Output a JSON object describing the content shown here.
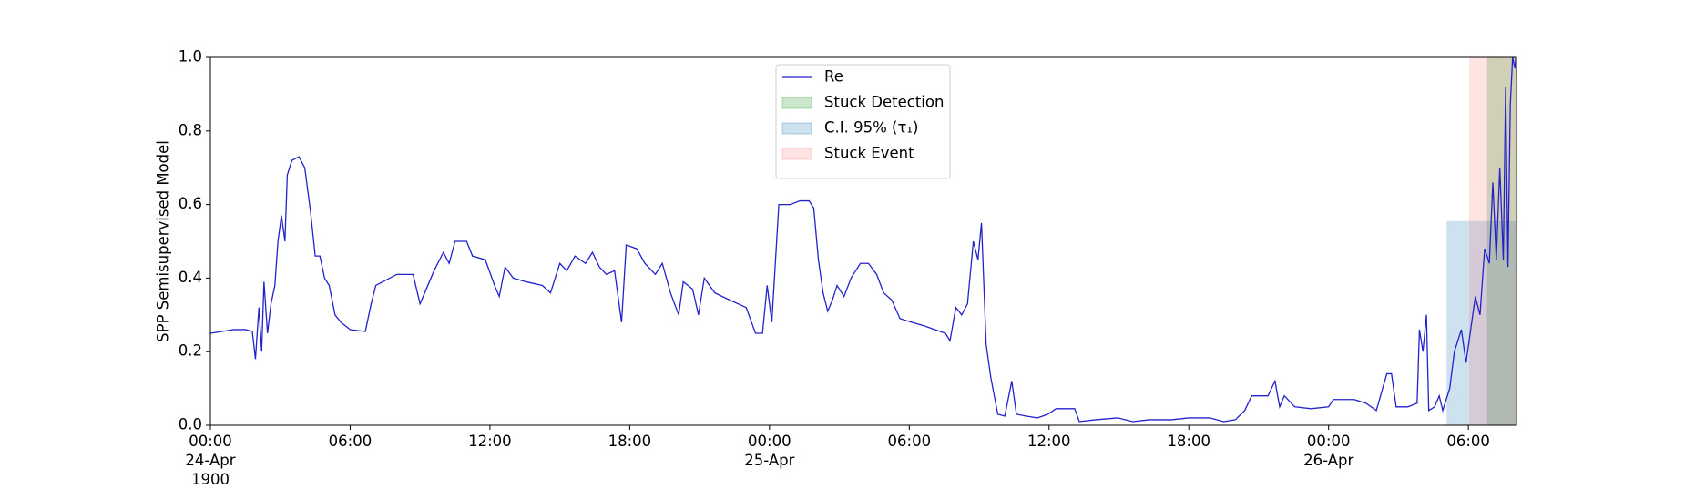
{
  "chart_data": {
    "type": "line",
    "ylabel": "SPP Semisupervised Model",
    "xlim": [
      "1900-04-24 00:00",
      "1900-04-26 08:04"
    ],
    "xticks": [
      {
        "value": "1900-04-24 00:00",
        "label": "00:00\n24-Apr\n1900"
      },
      {
        "value": "1900-04-24 06:00",
        "label": "06:00"
      },
      {
        "value": "1900-04-24 12:00",
        "label": "12:00"
      },
      {
        "value": "1900-04-24 18:00",
        "label": "18:00"
      },
      {
        "value": "1900-04-25 00:00",
        "label": "00:00\n25-Apr"
      },
      {
        "value": "1900-04-25 06:00",
        "label": "06:00"
      },
      {
        "value": "1900-04-25 12:00",
        "label": "12:00"
      },
      {
        "value": "1900-04-25 18:00",
        "label": "18:00"
      },
      {
        "value": "1900-04-26 00:00",
        "label": "00:00\n26-Apr"
      },
      {
        "value": "1900-04-26 06:00",
        "label": "06:00"
      }
    ],
    "ylim": [
      0,
      1
    ],
    "yticks": [
      {
        "value": 0,
        "label": "0.0"
      },
      0.2,
      0.4,
      0.6,
      0.8,
      {
        "value": 1,
        "label": "1.0"
      }
    ],
    "grid": false,
    "legend": "upper center",
    "x": [
      "1900-04-24 00:00",
      "1900-04-24 00:30",
      "1900-04-24 01:00",
      "1900-04-24 01:30",
      "1900-04-24 01:48",
      "1900-04-24 01:56",
      "1900-04-24 02:05",
      "1900-04-24 02:12",
      "1900-04-24 02:18",
      "1900-04-24 02:27",
      "1900-04-24 02:36",
      "1900-04-24 02:46",
      "1900-04-24 02:54",
      "1900-04-24 03:03",
      "1900-04-24 03:12",
      "1900-04-24 03:18",
      "1900-04-24 03:30",
      "1900-04-24 03:48",
      "1900-04-24 04:03",
      "1900-04-24 04:18",
      "1900-04-24 04:30",
      "1900-04-24 04:42",
      "1900-04-24 04:54",
      "1900-04-24 05:06",
      "1900-04-24 05:21",
      "1900-04-24 05:36",
      "1900-04-24 06:00",
      "1900-04-24 06:39",
      "1900-04-24 06:54",
      "1900-04-24 07:06",
      "1900-04-24 07:24",
      "1900-04-24 08:00",
      "1900-04-24 08:42",
      "1900-04-24 09:00",
      "1900-04-24 09:12",
      "1900-04-24 09:36",
      "1900-04-24 10:00",
      "1900-04-24 10:15",
      "1900-04-24 10:30",
      "1900-04-24 11:00",
      "1900-04-24 11:15",
      "1900-04-24 11:48",
      "1900-04-24 12:12",
      "1900-04-24 12:24",
      "1900-04-24 12:39",
      "1900-04-24 13:00",
      "1900-04-24 13:33",
      "1900-04-24 14:15",
      "1900-04-24 14:36",
      "1900-04-24 15:00",
      "1900-04-24 15:18",
      "1900-04-24 15:39",
      "1900-04-24 16:06",
      "1900-04-24 16:24",
      "1900-04-24 16:42",
      "1900-04-24 17:00",
      "1900-04-24 17:21",
      "1900-04-24 17:39",
      "1900-04-24 17:51",
      "1900-04-24 18:18",
      "1900-04-24 18:39",
      "1900-04-24 19:06",
      "1900-04-24 19:24",
      "1900-04-24 19:45",
      "1900-04-24 20:06",
      "1900-04-24 20:18",
      "1900-04-24 20:42",
      "1900-04-24 20:57",
      "1900-04-24 21:12",
      "1900-04-24 21:39",
      "1900-04-24 22:18",
      "1900-04-24 23:00",
      "1900-04-24 23:24",
      "1900-04-24 23:42",
      "1900-04-24 23:54",
      "1900-04-25 00:06",
      "1900-04-25 00:24",
      "1900-04-25 00:54",
      "1900-04-25 01:18",
      "1900-04-25 01:42",
      "1900-04-25 01:54",
      "1900-04-25 02:06",
      "1900-04-25 02:18",
      "1900-04-25 02:30",
      "1900-04-25 02:42",
      "1900-04-25 02:54",
      "1900-04-25 03:12",
      "1900-04-25 03:30",
      "1900-04-25 03:54",
      "1900-04-25 04:15",
      "1900-04-25 04:36",
      "1900-04-25 04:54",
      "1900-04-25 05:15",
      "1900-04-25 05:36",
      "1900-04-25 06:06",
      "1900-04-25 06:39",
      "1900-04-25 07:06",
      "1900-04-25 07:33",
      "1900-04-25 07:45",
      "1900-04-25 08:00",
      "1900-04-25 08:15",
      "1900-04-25 08:30",
      "1900-04-25 08:45",
      "1900-04-25 08:57",
      "1900-04-25 09:06",
      "1900-04-25 09:18",
      "1900-04-25 09:30",
      "1900-04-25 09:48",
      "1900-04-25 10:06",
      "1900-04-25 10:24",
      "1900-04-25 10:36",
      "1900-04-25 11:00",
      "1900-04-25 11:30",
      "1900-04-25 11:57",
      "1900-04-25 12:18",
      "1900-04-25 13:06",
      "1900-04-25 13:18",
      "1900-04-25 14:00",
      "1900-04-25 14:57",
      "1900-04-25 15:36",
      "1900-04-25 16:18",
      "1900-04-25 17:15",
      "1900-04-25 18:00",
      "1900-04-25 18:54",
      "1900-04-25 19:30",
      "1900-04-25 20:00",
      "1900-04-25 20:24",
      "1900-04-25 20:42",
      "1900-04-25 21:24",
      "1900-04-25 21:42",
      "1900-04-25 21:54",
      "1900-04-25 22:06",
      "1900-04-25 22:33",
      "1900-04-25 23:15",
      "1900-04-26 00:00",
      "1900-04-26 00:12",
      "1900-04-26 01:06",
      "1900-04-26 01:36",
      "1900-04-26 02:03",
      "1900-04-26 02:30",
      "1900-04-26 02:42",
      "1900-04-26 02:54",
      "1900-04-26 03:24",
      "1900-04-26 03:48",
      "1900-04-26 03:54",
      "1900-04-26 04:03",
      "1900-04-26 04:12",
      "1900-04-26 04:18",
      "1900-04-26 04:33",
      "1900-04-26 04:45",
      "1900-04-26 04:54",
      "1900-04-26 05:12",
      "1900-04-26 05:24",
      "1900-04-26 05:42",
      "1900-04-26 05:54",
      "1900-04-26 06:06",
      "1900-04-26 06:18",
      "1900-04-26 06:30",
      "1900-04-26 06:42",
      "1900-04-26 06:54",
      "1900-04-26 07:03",
      "1900-04-26 07:12",
      "1900-04-26 07:21",
      "1900-04-26 07:30",
      "1900-04-26 07:36",
      "1900-04-26 07:42",
      "1900-04-26 07:48",
      "1900-04-26 07:54",
      "1900-04-26 08:00",
      "1900-04-26 08:02",
      "1900-04-26 08:04"
    ],
    "series": [
      {
        "name": "Re",
        "color": "#2222cc",
        "values": [
          0.25,
          0.255,
          0.26,
          0.26,
          0.255,
          0.18,
          0.32,
          0.2,
          0.39,
          0.25,
          0.33,
          0.38,
          0.5,
          0.57,
          0.5,
          0.68,
          0.72,
          0.73,
          0.7,
          0.58,
          0.46,
          0.46,
          0.4,
          0.38,
          0.3,
          0.28,
          0.26,
          0.255,
          0.33,
          0.38,
          0.39,
          0.41,
          0.41,
          0.33,
          0.36,
          0.42,
          0.47,
          0.44,
          0.5,
          0.5,
          0.46,
          0.45,
          0.38,
          0.35,
          0.43,
          0.4,
          0.39,
          0.38,
          0.36,
          0.44,
          0.42,
          0.46,
          0.44,
          0.47,
          0.43,
          0.41,
          0.42,
          0.28,
          0.49,
          0.48,
          0.44,
          0.41,
          0.44,
          0.36,
          0.3,
          0.39,
          0.37,
          0.3,
          0.4,
          0.36,
          0.34,
          0.32,
          0.25,
          0.25,
          0.38,
          0.28,
          0.6,
          0.6,
          0.61,
          0.61,
          0.59,
          0.45,
          0.36,
          0.31,
          0.34,
          0.38,
          0.35,
          0.4,
          0.44,
          0.44,
          0.41,
          0.36,
          0.34,
          0.29,
          0.28,
          0.27,
          0.26,
          0.25,
          0.23,
          0.32,
          0.3,
          0.33,
          0.5,
          0.45,
          0.55,
          0.22,
          0.13,
          0.03,
          0.025,
          0.12,
          0.03,
          0.025,
          0.02,
          0.03,
          0.045,
          0.045,
          0.01,
          0.015,
          0.02,
          0.01,
          0.015,
          0.015,
          0.02,
          0.02,
          0.01,
          0.015,
          0.04,
          0.08,
          0.08,
          0.12,
          0.05,
          0.08,
          0.05,
          0.045,
          0.05,
          0.07,
          0.07,
          0.06,
          0.04,
          0.14,
          0.14,
          0.05,
          0.05,
          0.06,
          0.26,
          0.2,
          0.3,
          0.04,
          0.05,
          0.08,
          0.04,
          0.1,
          0.2,
          0.26,
          0.17,
          0.26,
          0.35,
          0.3,
          0.48,
          0.44,
          0.66,
          0.45,
          0.7,
          0.45,
          0.92,
          0.43,
          0.87,
          1.0,
          0.97,
          1.0,
          0.96
        ]
      }
    ],
    "spans": [
      {
        "name": "Stuck Detection",
        "color": "#2ca02c",
        "opacity": 0.25,
        "x": [
          "1900-04-26 06:48",
          "1900-04-26 08:04"
        ],
        "y": [
          0,
          1
        ]
      },
      {
        "name": "C.I. 95% (τ₁)",
        "color": "#1f77b4",
        "opacity": 0.22,
        "x": [
          "1900-04-26 05:04",
          "1900-04-26 08:04"
        ],
        "y": [
          0,
          0.555
        ]
      },
      {
        "name": "Stuck Event",
        "color": "#ff4d4d",
        "opacity": 0.15,
        "x": [
          "1900-04-26 06:02",
          "1900-04-26 08:04"
        ],
        "y": [
          0,
          1
        ]
      }
    ]
  }
}
